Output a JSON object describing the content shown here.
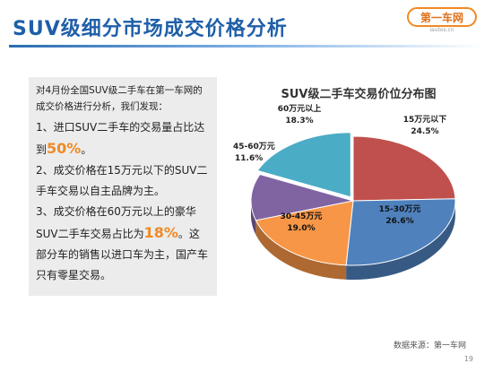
{
  "slide": {
    "title": "SUV级细分市场成交价格分析",
    "logo_main": "第一车网",
    "logo_sub": "iautos.cn",
    "source": "数据来源：第一车网",
    "page_number": "19"
  },
  "analysis": {
    "intro": "对4月份全国SUV级二手车在第一车网的成交价格进行分析，我们发现：",
    "point1_a": "1、进口SUV二手车的交易量占比达",
    "point1_b": "到",
    "point1_hl": "50%",
    "point1_c": "。",
    "point2": "2、成交价格在15万元以下的SUV二手车交易以自主品牌为主。",
    "point3_a": "3、成交价格在60万元以上的豪华SUV二手车交易占比为",
    "point3_hl": "18%",
    "point3_b": "。这部分车的销售以进口车为主，国产车只有零星交易。"
  },
  "chart_data": {
    "type": "pie",
    "title": "SUV级二手车交易价位分布图",
    "unit": "%",
    "slices": [
      {
        "label": "15万元以下",
        "value": 24.5,
        "value_text": "24.5%",
        "color": "#c0504d"
      },
      {
        "label": "15-30万元",
        "value": 26.6,
        "value_text": "26.6%",
        "color": "#4f81bd"
      },
      {
        "label": "30-45万元",
        "value": 19.0,
        "value_text": "19.0%",
        "color": "#f79646"
      },
      {
        "label": "45-60万元",
        "value": 11.6,
        "value_text": "11.6%",
        "color": "#8064a2"
      },
      {
        "label": "60万元以上",
        "value": 18.3,
        "value_text": "18.3%",
        "color": "#4bacc6"
      }
    ]
  }
}
